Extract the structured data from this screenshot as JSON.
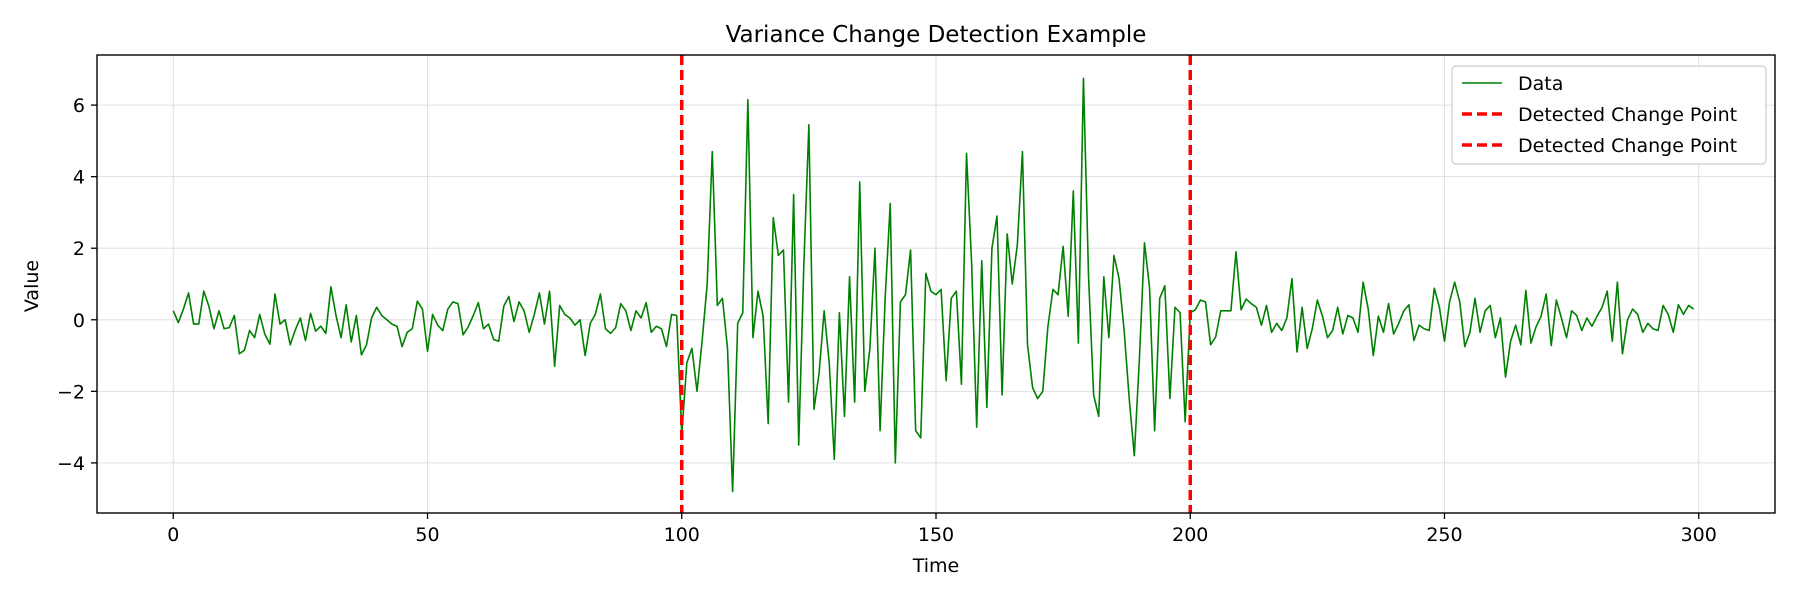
{
  "chart_data": {
    "type": "line",
    "title": "Variance Change Detection Example",
    "xlabel": "Time",
    "ylabel": "Value",
    "xlim": [
      -15,
      315
    ],
    "ylim": [
      -5.4,
      7.4
    ],
    "xticks": [
      0,
      50,
      100,
      150,
      200,
      250,
      300
    ],
    "yticks": [
      -4,
      -2,
      0,
      2,
      4,
      6
    ],
    "grid": true,
    "legend_position": "top-right",
    "colors": {
      "data": "#008000",
      "change_point": "#ff0000",
      "grid": "#e0e0e0",
      "axis": "#000000"
    },
    "series": [
      {
        "name": "Data",
        "values": [
          0.25,
          -0.08,
          0.3,
          0.75,
          -0.12,
          -0.12,
          0.8,
          0.38,
          -0.25,
          0.25,
          -0.25,
          -0.22,
          0.12,
          -0.95,
          -0.85,
          -0.3,
          -0.5,
          0.15,
          -0.4,
          -0.68,
          0.72,
          -0.12,
          0.0,
          -0.7,
          -0.28,
          0.05,
          -0.58,
          0.18,
          -0.32,
          -0.18,
          -0.38,
          0.92,
          0.12,
          -0.5,
          0.42,
          -0.62,
          0.12,
          -0.98,
          -0.7,
          0.05,
          0.35,
          0.12,
          0.0,
          -0.12,
          -0.18,
          -0.75,
          -0.35,
          -0.25,
          0.52,
          0.3,
          -0.88,
          0.15,
          -0.15,
          -0.3,
          0.3,
          0.5,
          0.45,
          -0.42,
          -0.2,
          0.12,
          0.48,
          -0.25,
          -0.12,
          -0.55,
          -0.6,
          0.38,
          0.65,
          -0.05,
          0.5,
          0.25,
          -0.35,
          0.15,
          0.75,
          -0.12,
          0.8,
          -1.3,
          0.4,
          0.15,
          0.05,
          -0.15,
          0.0,
          -1.0,
          -0.1,
          0.15,
          0.72,
          -0.25,
          -0.38,
          -0.22,
          0.45,
          0.25,
          -0.3,
          0.25,
          0.05,
          0.48,
          -0.35,
          -0.18,
          -0.25,
          -0.75,
          0.15,
          0.12,
          -3.2,
          -1.2,
          -0.8,
          -2.0,
          -0.6,
          1.0,
          4.7,
          0.4,
          0.6,
          -0.8,
          -4.8,
          -0.1,
          0.2,
          6.15,
          -0.5,
          0.8,
          0.1,
          -2.9,
          2.85,
          1.8,
          1.95,
          -2.3,
          3.5,
          -3.5,
          1.5,
          5.45,
          -2.5,
          -1.5,
          0.25,
          -1.2,
          -3.9,
          0.2,
          -2.7,
          1.2,
          -2.3,
          3.85,
          -2.0,
          -0.8,
          2.0,
          -3.1,
          0.6,
          3.25,
          -4.0,
          0.5,
          0.7,
          1.95,
          -3.1,
          -3.3,
          1.3,
          0.8,
          0.7,
          0.85,
          -1.7,
          0.6,
          0.8,
          -1.8,
          4.65,
          1.6,
          -3.0,
          1.65,
          -2.45,
          2.0,
          2.9,
          -2.1,
          2.4,
          1.0,
          2.1,
          4.7,
          -0.7,
          -1.9,
          -2.2,
          -2.0,
          -0.2,
          0.85,
          0.7,
          2.05,
          0.1,
          3.6,
          -0.65,
          6.75,
          1.2,
          -2.1,
          -2.7,
          1.2,
          -0.5,
          1.8,
          1.15,
          -0.3,
          -2.2,
          -3.8,
          -1.1,
          2.15,
          0.9,
          -3.1,
          0.6,
          0.95,
          -2.2,
          0.35,
          0.2,
          -2.85,
          0.2,
          0.28,
          0.55,
          0.5,
          -0.7,
          -0.48,
          0.25,
          0.25,
          0.25,
          1.9,
          0.28,
          0.58,
          0.45,
          0.35,
          -0.15,
          0.4,
          -0.35,
          -0.1,
          -0.3,
          0.05,
          1.15,
          -0.9,
          0.35,
          -0.8,
          -0.25,
          0.55,
          0.1,
          -0.5,
          -0.3,
          0.35,
          -0.4,
          0.12,
          0.05,
          -0.35,
          1.05,
          0.3,
          -1.0,
          0.1,
          -0.35,
          0.45,
          -0.4,
          -0.1,
          0.25,
          0.42,
          -0.58,
          -0.15,
          -0.25,
          -0.3,
          0.88,
          0.35,
          -0.6,
          0.5,
          1.05,
          0.5,
          -0.75,
          -0.35,
          0.6,
          -0.35,
          0.25,
          0.4,
          -0.5,
          0.05,
          -1.6,
          -0.6,
          -0.15,
          -0.7,
          0.82,
          -0.65,
          -0.2,
          0.1,
          0.72,
          -0.72,
          0.55,
          0.05,
          -0.5,
          0.25,
          0.12,
          -0.3,
          0.05,
          -0.18,
          0.1,
          0.35,
          0.8,
          -0.6,
          1.05,
          -0.95,
          0.0,
          0.3,
          0.15,
          -0.35,
          -0.1,
          -0.25,
          -0.3,
          0.4,
          0.15,
          -0.35,
          0.42,
          0.15,
          0.4,
          0.3
        ]
      }
    ],
    "change_points": [
      {
        "name": "Detected Change Point",
        "x": 100
      },
      {
        "name": "Detected Change Point",
        "x": 200
      }
    ]
  }
}
